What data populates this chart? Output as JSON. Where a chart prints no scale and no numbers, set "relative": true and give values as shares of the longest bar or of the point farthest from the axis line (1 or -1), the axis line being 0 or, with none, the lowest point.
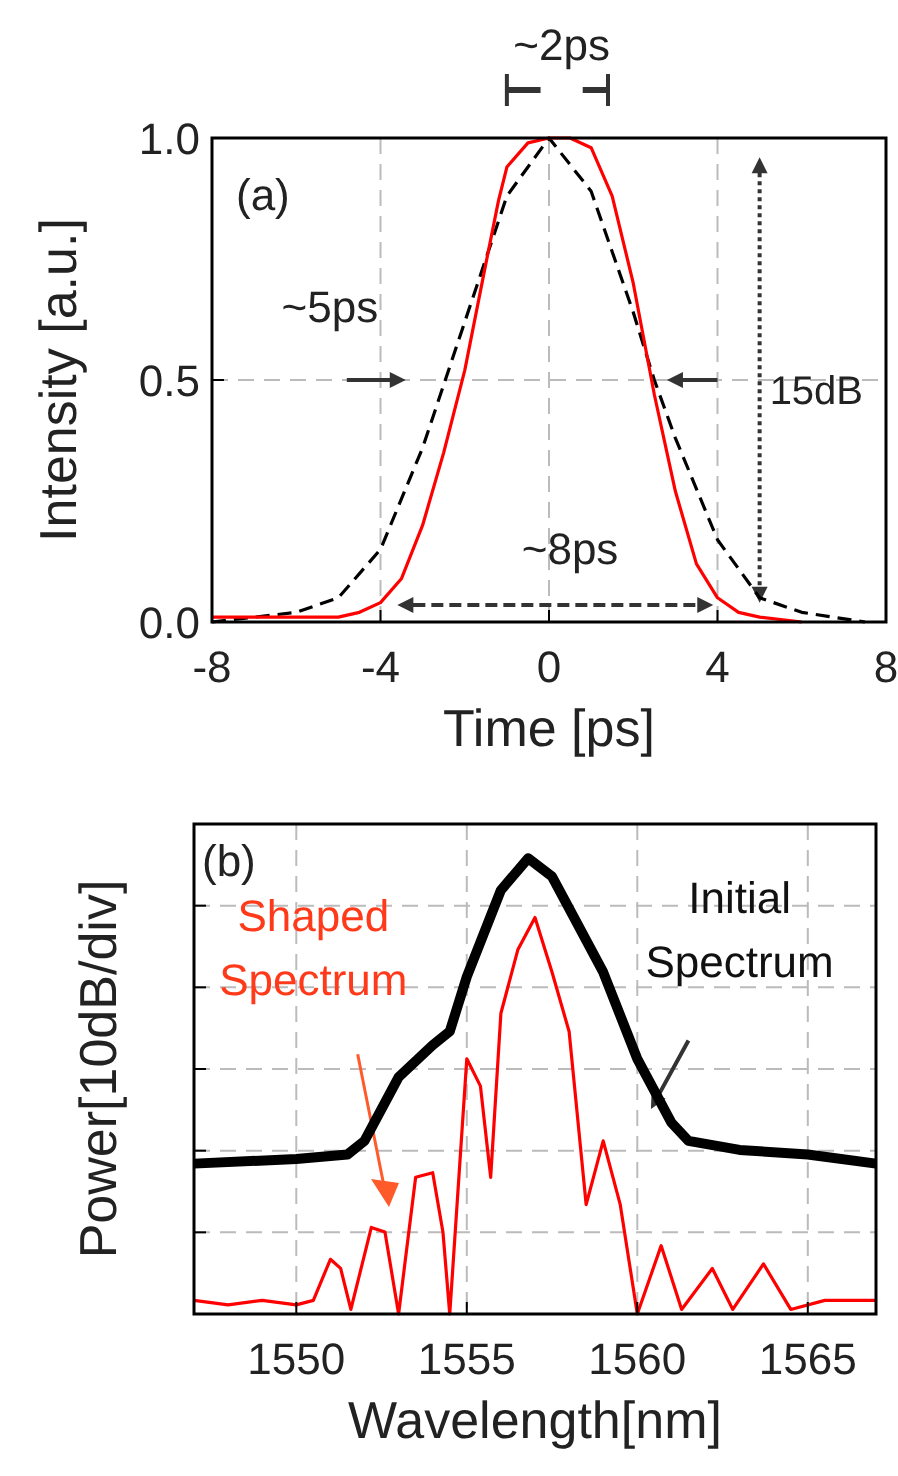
{
  "chart_data": [
    {
      "type": "line",
      "xlabel": "Time [ps]",
      "ylabel": "Intensity [a.u.]",
      "xlim": [
        -8,
        8
      ],
      "xticks": [
        -8,
        -4,
        0,
        4,
        8
      ],
      "ylim": [
        0,
        1
      ],
      "yticks": [
        {
          "value": 0,
          "label": "0.0"
        },
        {
          "value": 0.5,
          "label": "0.5"
        },
        {
          "value": 1,
          "label": "1.0"
        }
      ],
      "grid": true,
      "marker": "none",
      "annotations": [
        "(a)",
        "~2ps",
        "~5ps",
        "~8ps",
        "15dB"
      ],
      "series": [
        {
          "color": "#000000",
          "line_style": "dashed",
          "x": [
            -8,
            -6,
            -5,
            -4,
            -3,
            -2,
            -1,
            0,
            1,
            2,
            2.5,
            3,
            4,
            5,
            6,
            7.5
          ],
          "values": [
            0,
            0.02,
            0.05,
            0.15,
            0.36,
            0.62,
            0.88,
            1.0,
            0.89,
            0.64,
            0.5,
            0.38,
            0.17,
            0.05,
            0.02,
            0
          ]
        },
        {
          "color": "#ff0000",
          "line_style": "solid",
          "x": [
            -8,
            -6,
            -5,
            -4.5,
            -4,
            -3.5,
            -3,
            -2.5,
            -2,
            -1.5,
            -1.2,
            -1,
            -0.5,
            0,
            0.5,
            1,
            1.5,
            2,
            2.5,
            3,
            3.5,
            4,
            4.5,
            5,
            6
          ],
          "values": [
            0.01,
            0.01,
            0.01,
            0.02,
            0.04,
            0.09,
            0.2,
            0.35,
            0.52,
            0.74,
            0.87,
            0.94,
            0.99,
            1.0,
            1.0,
            0.98,
            0.88,
            0.7,
            0.47,
            0.27,
            0.12,
            0.05,
            0.02,
            0.01,
            0
          ]
        }
      ]
    },
    {
      "type": "line",
      "xlabel": "Wavelength[nm]",
      "ylabel": "Power[10dB/div]",
      "xlim": [
        1547,
        1567
      ],
      "xticks": [
        1550,
        1555,
        1560,
        1565
      ],
      "relative": true,
      "grid": true,
      "marker": "none",
      "annotations": [
        "(b)",
        "Initial Spectrum",
        "Shaped Spectrum"
      ],
      "series": [
        {
          "color": "#000000",
          "line_style": "solid",
          "x": [
            1547,
            1550,
            1551.5,
            1552,
            1553,
            1554,
            1554.5,
            1555,
            1556,
            1556.8,
            1557.5,
            1558,
            1559,
            1560,
            1561,
            1561.5,
            1563,
            1565,
            1567
          ],
          "values": [
            0.33,
            0.34,
            0.35,
            0.38,
            0.52,
            0.59,
            0.62,
            0.74,
            0.93,
            1.0,
            0.96,
            0.89,
            0.75,
            0.56,
            0.42,
            0.38,
            0.36,
            0.35,
            0.33
          ]
        },
        {
          "color": "#ff0000",
          "line_style": "solid",
          "x": [
            1547,
            1548,
            1549,
            1550,
            1550.5,
            1551,
            1551.3,
            1551.6,
            1552.2,
            1552.6,
            1553,
            1553.5,
            1554,
            1554.3,
            1554.5,
            1555,
            1555.4,
            1555.7,
            1556,
            1556.5,
            1557,
            1557.5,
            1558,
            1558.5,
            1559,
            1559.5,
            1560,
            1560.7,
            1561.3,
            1562.2,
            1562.8,
            1563.7,
            1564.5,
            1565.5,
            1567
          ],
          "values": [
            0.03,
            0.02,
            0.03,
            0.02,
            0.03,
            0.12,
            0.1,
            0.01,
            0.19,
            0.18,
            0,
            0.3,
            0.31,
            0.18,
            0,
            0.56,
            0.5,
            0.3,
            0.66,
            0.8,
            0.87,
            0.75,
            0.62,
            0.24,
            0.38,
            0.24,
            0,
            0.15,
            0.01,
            0.1,
            0.01,
            0.11,
            0.01,
            0.03,
            0.03
          ]
        }
      ]
    }
  ]
}
